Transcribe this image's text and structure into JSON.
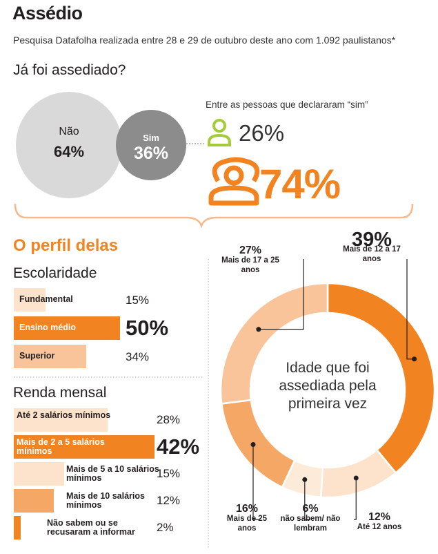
{
  "header": {
    "title": "Assédio",
    "subtitle": "Pesquisa Datafolha realizada entre 28 e 29 de outubro deste ano com 1.092 paulistanos*",
    "question": "Já foi assediado?"
  },
  "colors": {
    "orange": "#f28321",
    "light_orange": "#f9c49a",
    "mid_orange": "#f5a866",
    "pale": "#fde3cc",
    "grey_big": "#d9d9d9",
    "grey_small": "#8c8c8c",
    "lime": "#a4cc3a"
  },
  "answer_chart": {
    "no_label": "Não",
    "no_value": "64%",
    "yes_label": "Sim",
    "yes_value": "36%",
    "note": "Entre as pessoas que declararam “sim”",
    "men_icon": "man-icon",
    "men_value": "26%",
    "women_icon": "woman-icon",
    "women_value": "74%"
  },
  "profile": {
    "title": "O perfil delas",
    "education_title": "Escolaridade",
    "income_title": "Renda mensal",
    "donut_center": [
      "Idade que foi",
      "assediada pela",
      "primeira vez"
    ]
  },
  "chart_data": [
    {
      "type": "pie",
      "title": "Já foi assediado?",
      "categories": [
        "Não",
        "Sim"
      ],
      "values": [
        64,
        36
      ]
    },
    {
      "type": "pie",
      "title": "Entre as pessoas que declararam “sim”",
      "categories": [
        "man-icon",
        "woman-icon"
      ],
      "values": [
        26,
        74
      ]
    },
    {
      "type": "bar",
      "title": "Escolaridade",
      "categories": [
        "Fundamental",
        "Ensino médio",
        "Superior"
      ],
      "labels": [
        "15%",
        "50%",
        "34%"
      ],
      "values": [
        15,
        50,
        34
      ],
      "highlight": "Ensino médio"
    },
    {
      "type": "bar",
      "title": "Renda mensal",
      "categories": [
        "Até 2 salários mínimos",
        "Mais de 2 a 5 salários mínimos",
        "Mais de 5 a 10 salários mínimos",
        "Mais de 10 salários mínimos",
        "Não sabem ou se recusaram a informar"
      ],
      "labels": [
        "28%",
        "42%",
        "15%",
        "12%",
        "2%"
      ],
      "values": [
        28,
        42,
        15,
        12,
        2
      ],
      "highlight": "Mais de 2 a 5 salários mínimos"
    },
    {
      "type": "pie",
      "title": "Idade que foi assediada pela primeira vez",
      "categories": [
        "Mais de 12 a 17 anos",
        "Até 12 anos",
        "não sabem/ não lembram",
        "Mais de 25 anos",
        "Mais de 17 a 25 anos"
      ],
      "labels": [
        "39%",
        "12%",
        "6%",
        "16%",
        "27%"
      ],
      "values": [
        39,
        12,
        6,
        16,
        27
      ]
    }
  ]
}
